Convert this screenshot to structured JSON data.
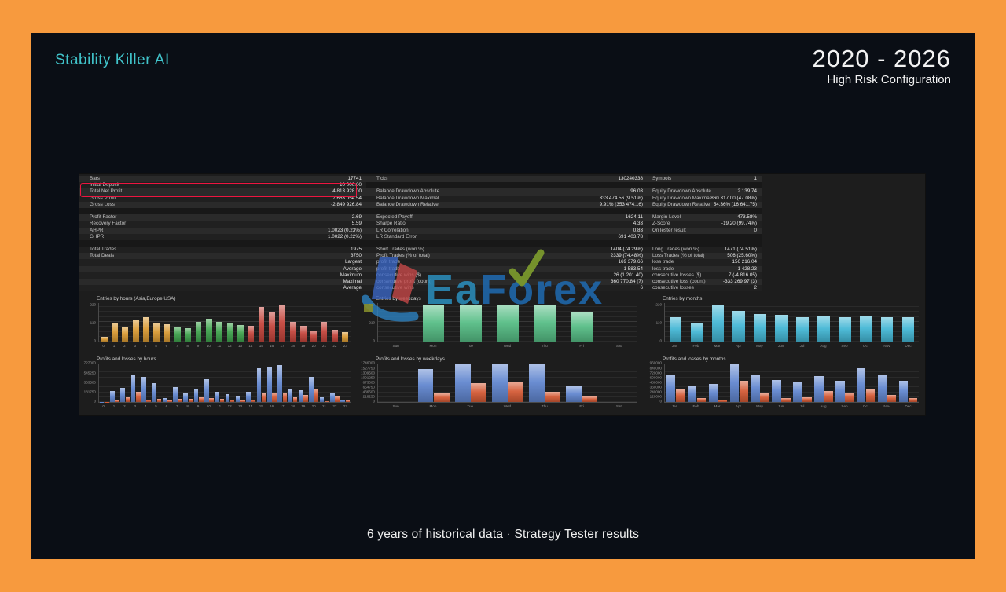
{
  "slide": {
    "title": "Stability Killer AI",
    "period": "2020 - 2026",
    "config_label": "High Risk Configuration",
    "caption": "6 years of historical data · Strategy Tester results",
    "accent_color": "#41c4cb",
    "frame_color": "#f79a3e",
    "panel_color": "#0a0e15",
    "highlight_color": "#ed1540"
  },
  "watermark": {
    "part_ea": "Ea",
    "part_f": "F",
    "part_o": "o",
    "part_rex": "rex"
  },
  "report": {
    "columns": [
      {
        "rows": [
          {
            "l": "Bars",
            "v": "17741"
          },
          {
            "l": "Initial Deposit",
            "v": "10 000.00"
          },
          {
            "l": "Total Net Profit",
            "v": "4 813 928.00"
          },
          {
            "l": "Gross Profit",
            "v": "7 663 054.54"
          },
          {
            "l": "Gross Loss",
            "v": "-2 849 926.84"
          },
          {
            "sp": true
          },
          {
            "l": "Profit Factor",
            "v": "2.69"
          },
          {
            "l": "Recovery Factor",
            "v": "5.59"
          },
          {
            "l": "AHPR",
            "v": "1.0023 (0.23%)"
          },
          {
            "l": "GHPR",
            "v": "1.0022 (0.22%)"
          },
          {
            "sp": true
          },
          {
            "l": "Total Trades",
            "v": "1975"
          },
          {
            "l": "Total Deals",
            "v": "3750"
          },
          {
            "l": "",
            "v": "Largest"
          },
          {
            "l": "",
            "v": "Average"
          },
          {
            "l": "",
            "v": "Maximum"
          },
          {
            "l": "",
            "v": "Maximal"
          },
          {
            "l": "",
            "v": "Average"
          }
        ]
      },
      {
        "rows": [
          {
            "l": "Ticks",
            "v": "130240338"
          },
          {
            "sp": true
          },
          {
            "l": "Balance Drawdown Absolute",
            "v": "96.03"
          },
          {
            "l": "Balance Drawdown Maximal",
            "v": "333 474.56 (9.51%)"
          },
          {
            "l": "Balance Drawdown Relative",
            "v": "9.91% (353 474.16)"
          },
          {
            "sp": true
          },
          {
            "l": "Expected Payoff",
            "v": "1624.11"
          },
          {
            "l": "Sharpe Ratio",
            "v": "4.33"
          },
          {
            "l": "LR Correlation",
            "v": "0.83"
          },
          {
            "l": "LR Standard Error",
            "v": "691 403.78"
          },
          {
            "sp": true
          },
          {
            "l": "Short Trades (won %)",
            "v": "1404 (74.29%)"
          },
          {
            "l": "Profit Trades (% of total)",
            "v": "2339 (74.48%)"
          },
          {
            "l": "profit trade",
            "v": "169 379.66"
          },
          {
            "l": "profit trade",
            "v": "1 583.54"
          },
          {
            "l": "consecutive wins ($)",
            "v": "26 (1 201.40)"
          },
          {
            "l": "consecutive profit (count)",
            "v": "360 770.84 (7)"
          },
          {
            "l": "consecutive wins",
            "v": "6"
          }
        ]
      },
      {
        "rows": [
          {
            "l": "Symbols",
            "v": "1"
          },
          {
            "sp": true
          },
          {
            "l": "Equity Drawdown Absolute",
            "v": "2 139.74"
          },
          {
            "l": "Equity Drawdown Maximal",
            "v": "860 317.00 (47.08%)"
          },
          {
            "l": "Equity Drawdown Relative",
            "v": "54.36% (16 641.75)"
          },
          {
            "sp": true
          },
          {
            "l": "Margin Level",
            "v": "473.58%"
          },
          {
            "l": "Z-Score",
            "v": "-19.20 (99.74%)"
          },
          {
            "l": "OnTester result",
            "v": "0"
          },
          {
            "sp": true
          },
          {
            "sp": true
          },
          {
            "l": "Long Trades (won %)",
            "v": "1471 (74.51%)"
          },
          {
            "l": "Loss Trades (% of total)",
            "v": "506 (25.60%)"
          },
          {
            "l": "loss trade",
            "v": "156 216.04"
          },
          {
            "l": "loss trade",
            "v": "-1 428.23"
          },
          {
            "l": "consecutive losses ($)",
            "v": "7 (-4 816.05)"
          },
          {
            "l": "consecutive loss (count)",
            "v": "-333 269.97 (3)"
          },
          {
            "l": "consecutive losses",
            "v": "2"
          }
        ]
      }
    ]
  },
  "chart_data": [
    {
      "id": "entries-by-hours",
      "type": "bar",
      "title": "Entries by hours (Asia,Europe,USA)",
      "categories": [
        "0",
        "1",
        "2",
        "3",
        "4",
        "5",
        "6",
        "7",
        "8",
        "9",
        "10",
        "11",
        "12",
        "13",
        "14",
        "15",
        "16",
        "17",
        "18",
        "19",
        "20",
        "21",
        "22",
        "23"
      ],
      "values": [
        28,
        115,
        88,
        132,
        145,
        112,
        103,
        88,
        82,
        118,
        138,
        118,
        112,
        98,
        95,
        205,
        180,
        220,
        118,
        92,
        68,
        118,
        70,
        55
      ],
      "bar_colors": [
        "#d99a33",
        "#d99a33",
        "#d99a33",
        "#d99a33",
        "#d99a33",
        "#d99a33",
        "#d99a33",
        "#3fa34d",
        "#3fa34d",
        "#3fa34d",
        "#3fa34d",
        "#3fa34d",
        "#3fa34d",
        "#3fa34d",
        "#c4453c",
        "#c4453c",
        "#c4453c",
        "#c4453c",
        "#c4453c",
        "#c4453c",
        "#c4453c",
        "#c4453c",
        "#c4453c",
        "#d99a33"
      ],
      "ymax": 230,
      "yticks": [
        [
          220,
          "220"
        ],
        [
          110,
          "110"
        ],
        [
          0,
          "0"
        ]
      ],
      "grid": true
    },
    {
      "id": "entries-by-weekdays",
      "type": "bar",
      "title": "Entries by weekdays",
      "categories": [
        "Sun",
        "Mon",
        "Tue",
        "Wed",
        "Thu",
        "Fri",
        "Sat"
      ],
      "values": [
        0,
        410,
        415,
        420,
        415,
        330,
        0
      ],
      "color": "#56bd85",
      "ymax": 440,
      "yticks": [
        [
          420,
          "420"
        ],
        [
          210,
          "210"
        ],
        [
          0,
          "0"
        ]
      ],
      "grid": true
    },
    {
      "id": "entries-by-months",
      "type": "bar",
      "title": "Entries by months",
      "categories": [
        "Jan",
        "Feb",
        "Mar",
        "Apr",
        "May",
        "Jun",
        "Jul",
        "Aug",
        "Sep",
        "Oct",
        "Nov",
        "Dec"
      ],
      "values": [
        145,
        115,
        220,
        185,
        165,
        160,
        145,
        150,
        145,
        155,
        145,
        145
      ],
      "color": "#44b7d5",
      "ymax": 230,
      "yticks": [
        [
          220,
          "220"
        ],
        [
          110,
          "110"
        ],
        [
          0,
          "0"
        ]
      ],
      "grid": true
    },
    {
      "id": "pl-by-hours",
      "type": "bar",
      "title": "Profits and losses by hours",
      "categories": [
        "0",
        "1",
        "2",
        "3",
        "4",
        "5",
        "6",
        "7",
        "8",
        "9",
        "10",
        "11",
        "12",
        "13",
        "14",
        "15",
        "16",
        "17",
        "18",
        "19",
        "20",
        "21",
        "22",
        "23"
      ],
      "series": [
        {
          "name": "profit",
          "color": "#6186cf",
          "values": [
            5000,
            210000,
            260000,
            500000,
            475000,
            360000,
            80000,
            280000,
            170000,
            250000,
            430000,
            200000,
            150000,
            110000,
            190000,
            640000,
            670000,
            700000,
            240000,
            230000,
            470000,
            95000,
            175000,
            45000
          ]
        },
        {
          "name": "loss",
          "color": "#d45a35",
          "values": [
            2000,
            30000,
            95000,
            195000,
            40000,
            60000,
            30000,
            65000,
            60000,
            95000,
            70000,
            55000,
            40000,
            35000,
            45000,
            160000,
            175000,
            185000,
            85000,
            140000,
            250000,
            15000,
            105000,
            35000
          ]
        }
      ],
      "ymax": 727000,
      "yticks": [
        [
          727000,
          "727000"
        ],
        [
          545250,
          "545250"
        ],
        [
          363500,
          "363500"
        ],
        [
          181750,
          "181750"
        ],
        [
          0,
          "0"
        ]
      ],
      "grid": true
    },
    {
      "id": "pl-by-weekdays",
      "type": "bar",
      "title": "Profits and losses by weekdays",
      "categories": [
        "Sun",
        "Mon",
        "Tue",
        "Wed",
        "Thu",
        "Fri",
        "Sat"
      ],
      "series": [
        {
          "name": "profit",
          "color": "#6186cf",
          "values": [
            0,
            1500000,
            1740000,
            1735000,
            1745000,
            700000,
            0
          ]
        },
        {
          "name": "loss",
          "color": "#d45a35",
          "values": [
            0,
            380000,
            870000,
            930000,
            480000,
            250000,
            0
          ]
        }
      ],
      "ymax": 1746000,
      "yticks": [
        [
          1746000,
          "1746000"
        ],
        [
          1527750,
          "1527750"
        ],
        [
          1309500,
          "1309500"
        ],
        [
          1091250,
          "1091250"
        ],
        [
          873000,
          "873000"
        ],
        [
          654750,
          "654750"
        ],
        [
          436500,
          "436500"
        ],
        [
          218250,
          "218250"
        ],
        [
          0,
          "0"
        ]
      ],
      "grid": true
    },
    {
      "id": "pl-by-months",
      "type": "bar",
      "title": "Profits and losses by months",
      "categories": [
        "Jan",
        "Feb",
        "Mar",
        "Apr",
        "May",
        "Jun",
        "Jul",
        "Aug",
        "Sep",
        "Oct",
        "Nov",
        "Dec"
      ],
      "series": [
        {
          "name": "profit",
          "color": "#6186cf",
          "values": [
            690000,
            400000,
            460000,
            940000,
            690000,
            555000,
            500000,
            650000,
            530000,
            845000,
            690000,
            530000
          ]
        },
        {
          "name": "loss",
          "color": "#d45a35",
          "values": [
            310000,
            95000,
            65000,
            530000,
            210000,
            95000,
            115000,
            280000,
            240000,
            310000,
            170000,
            95000
          ]
        }
      ],
      "ymax": 960000,
      "yticks": [
        [
          960000,
          "960000"
        ],
        [
          840000,
          "840000"
        ],
        [
          720000,
          "720000"
        ],
        [
          600000,
          "600000"
        ],
        [
          480000,
          "480000"
        ],
        [
          360000,
          "360000"
        ],
        [
          240000,
          "240000"
        ],
        [
          120000,
          "120000"
        ],
        [
          0,
          "0"
        ]
      ],
      "grid": true
    }
  ]
}
